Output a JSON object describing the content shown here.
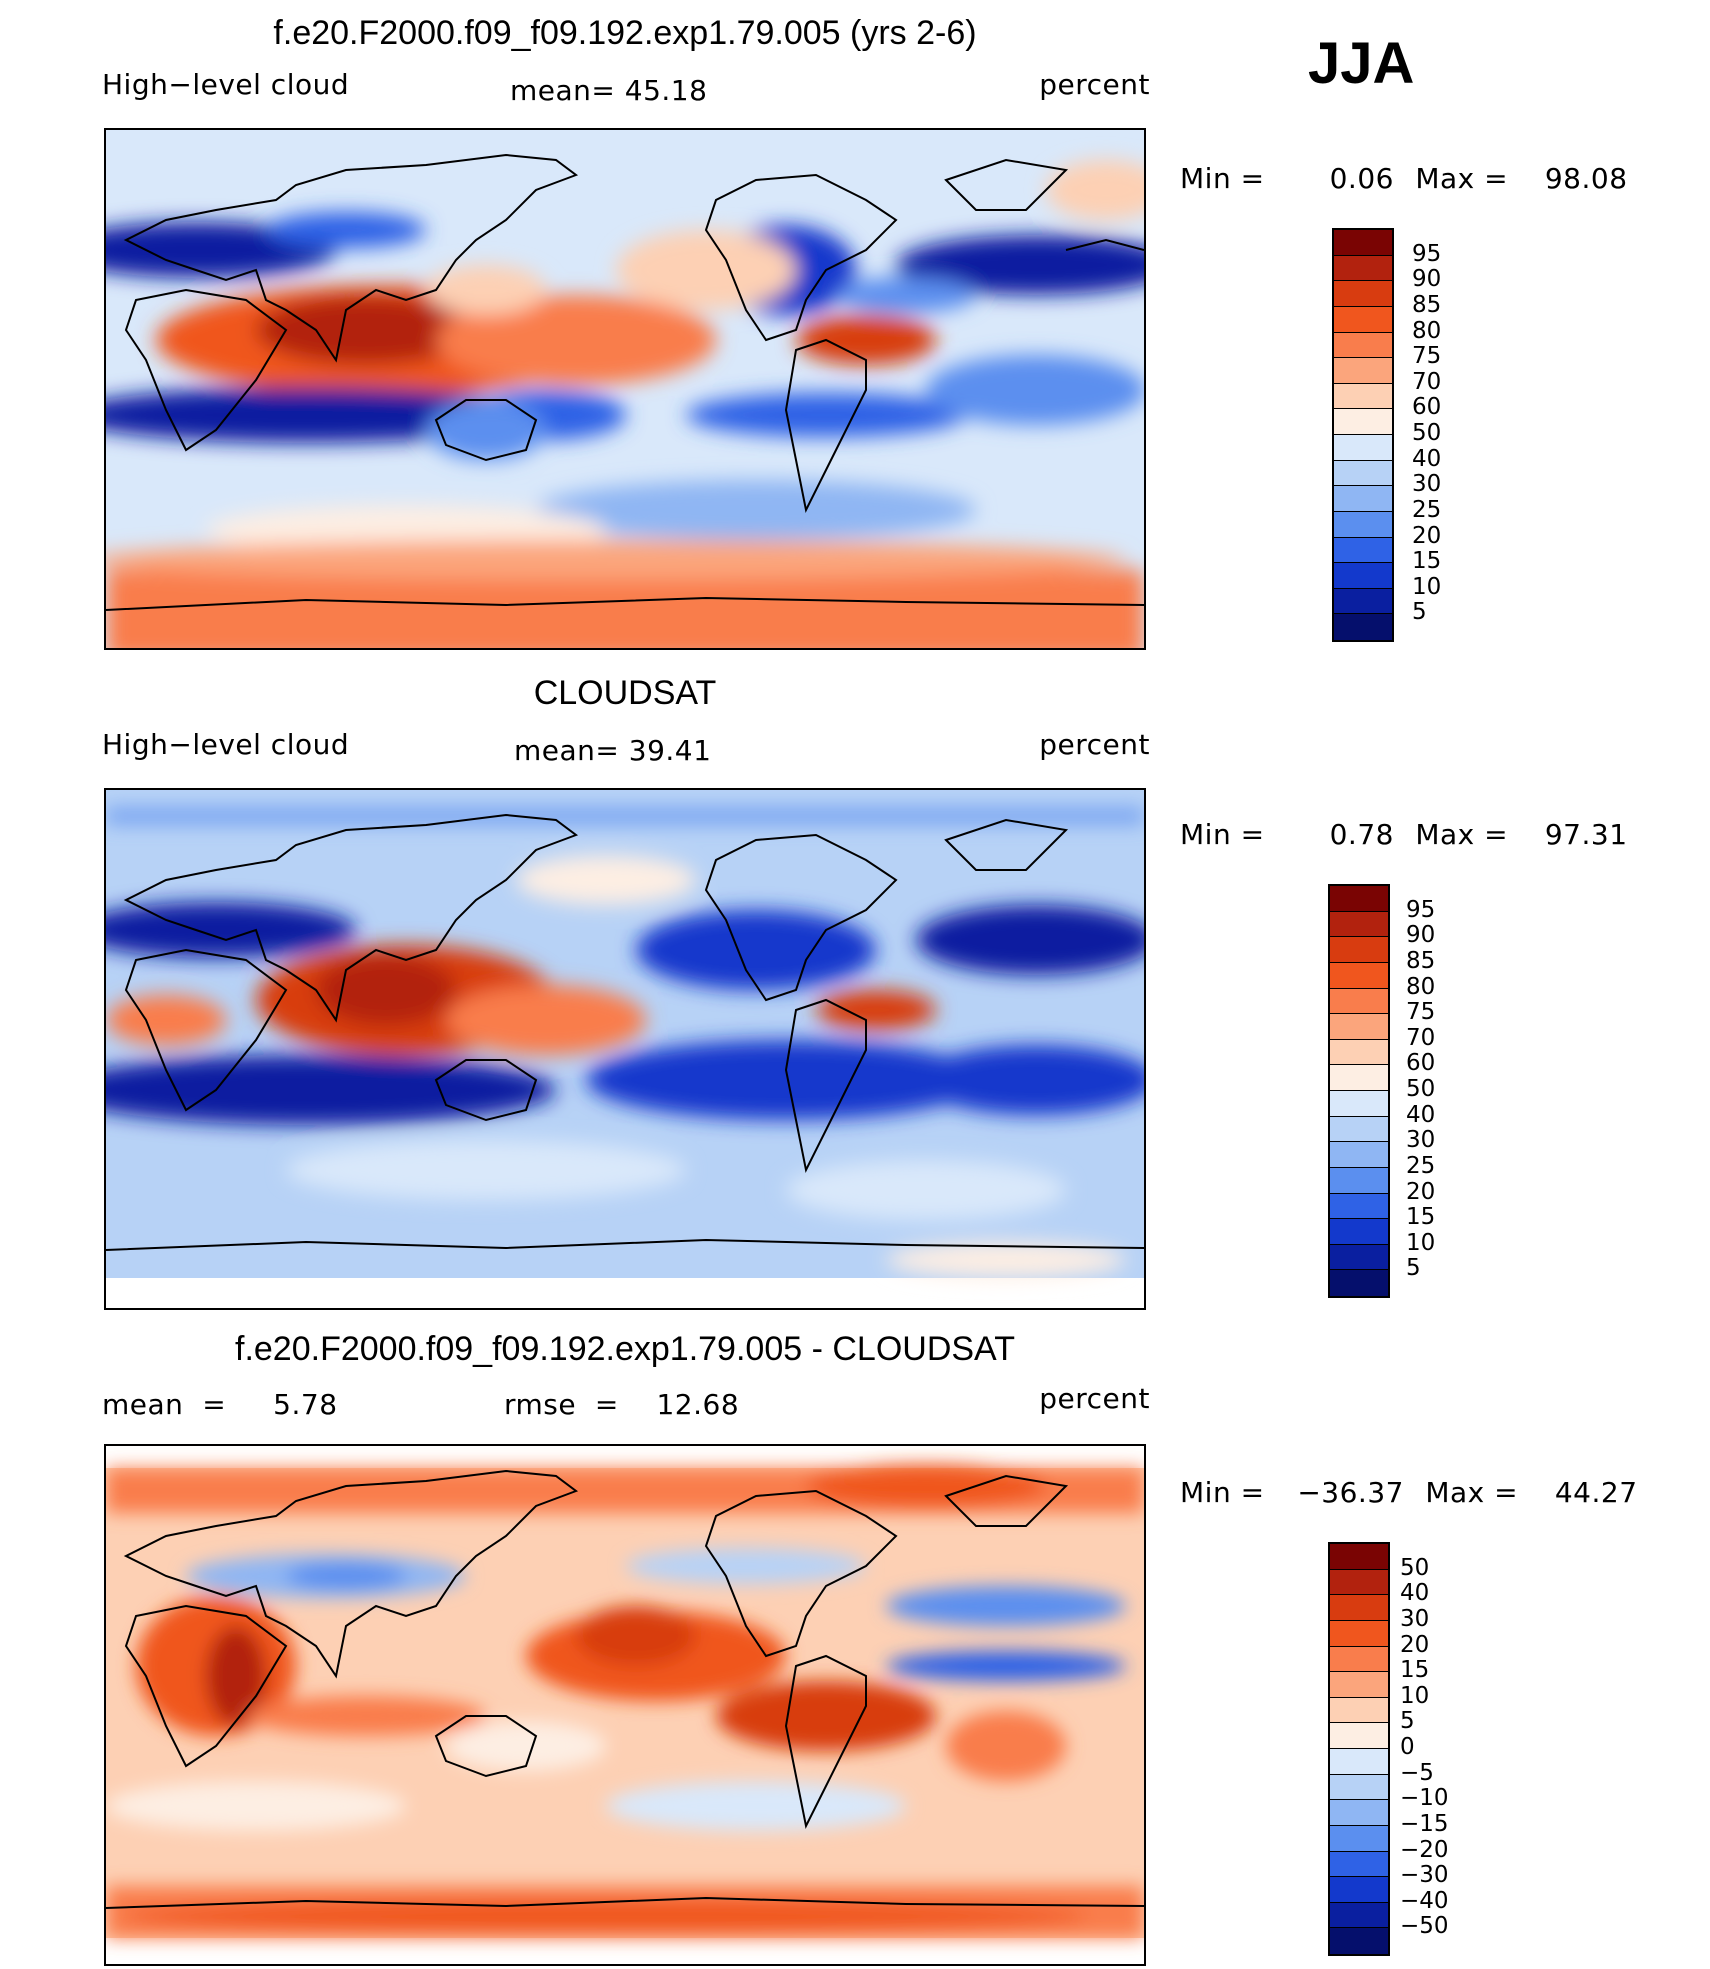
{
  "season": "JJA",
  "panels": [
    {
      "title": "f.e20.F2000.f09_f09.192.exp1.79.005 (yrs 2-6)",
      "left_label": "High−level cloud",
      "mid_label": "mean=  45.18",
      "right_label": "percent",
      "min_label": "Min  =",
      "min_value": "0.06",
      "max_label": "Max  =",
      "max_value": "98.08",
      "colorbar": {
        "colors": [
          "#7a0403",
          "#b2220e",
          "#d83c10",
          "#f0561e",
          "#f97d4c",
          "#fba57c",
          "#fdd0b4",
          "#fdeee3",
          "#d9e8fa",
          "#b7d2f6",
          "#8fb6f3",
          "#5b8fef",
          "#2f62e6",
          "#1339cc",
          "#0a1fa0",
          "#050f6c"
        ],
        "ticks": [
          "95",
          "90",
          "85",
          "80",
          "75",
          "70",
          "60",
          "50",
          "40",
          "30",
          "25",
          "20",
          "15",
          "10",
          "5"
        ]
      }
    },
    {
      "title": "CLOUDSAT",
      "left_label": "High−level cloud",
      "mid_label": "mean=  39.41",
      "right_label": "percent",
      "min_label": "Min  =",
      "min_value": "0.78",
      "max_label": "Max  =",
      "max_value": "97.31",
      "colorbar": {
        "colors": [
          "#7a0403",
          "#b2220e",
          "#d83c10",
          "#f0561e",
          "#f97d4c",
          "#fba57c",
          "#fdd0b4",
          "#fdeee3",
          "#d9e8fa",
          "#b7d2f6",
          "#8fb6f3",
          "#5b8fef",
          "#2f62e6",
          "#1339cc",
          "#0a1fa0",
          "#050f6c"
        ],
        "ticks": [
          "95",
          "90",
          "85",
          "80",
          "75",
          "70",
          "60",
          "50",
          "40",
          "30",
          "25",
          "20",
          "15",
          "10",
          "5"
        ]
      }
    },
    {
      "title": "f.e20.F2000.f09_f09.192.exp1.79.005 - CLOUDSAT",
      "left_label": "mean  =     5.78",
      "mid_label": "rmse  =    12.68",
      "right_label": "percent",
      "min_label": "Min  =",
      "min_value": "−36.37",
      "max_label": "Max  =",
      "max_value": "44.27",
      "colorbar": {
        "colors": [
          "#7a0403",
          "#b2220e",
          "#d83c10",
          "#f0561e",
          "#f97d4c",
          "#fba57c",
          "#fdd0b4",
          "#fdeee3",
          "#d9e8fa",
          "#b7d2f6",
          "#8fb6f3",
          "#5b8fef",
          "#2f62e6",
          "#1339cc",
          "#0a1fa0",
          "#050f6c"
        ],
        "ticks": [
          "50",
          "40",
          "30",
          "20",
          "15",
          "10",
          "5",
          "0",
          "−5",
          "−10",
          "−15",
          "−20",
          "−30",
          "−40",
          "−50"
        ]
      }
    }
  ]
}
